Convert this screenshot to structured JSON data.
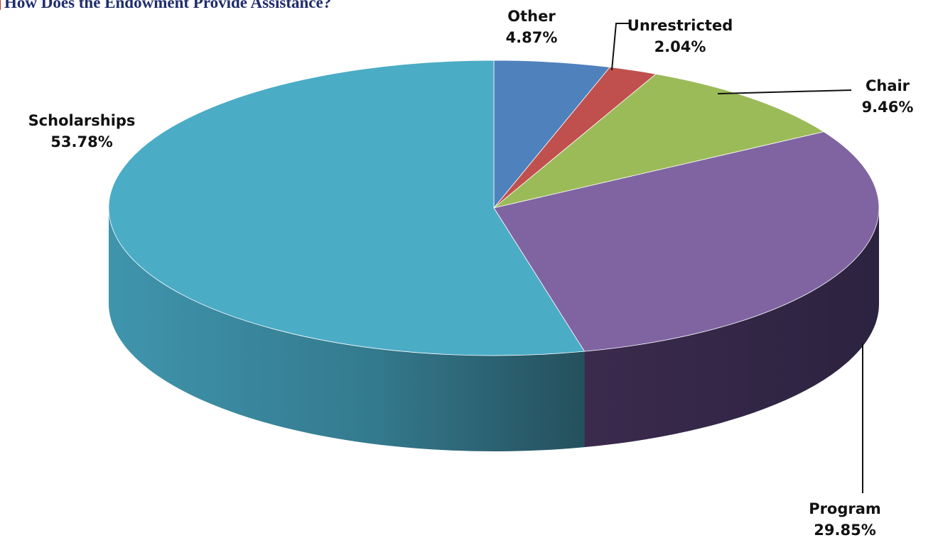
{
  "chart_data": {
    "type": "pie",
    "title": "How Does the Endowment Provide Assistance?",
    "three_d": true,
    "slices": [
      {
        "label": "Other",
        "value": 4.87,
        "value_label": "4.87%",
        "color": "#4f81bd"
      },
      {
        "label": "Unrestricted",
        "value": 2.04,
        "value_label": "2.04%",
        "color": "#c0504d"
      },
      {
        "label": "Chair",
        "value": 9.46,
        "value_label": "9.46%",
        "color": "#9bbb59"
      },
      {
        "label": "Program",
        "value": 29.85,
        "value_label": "29.85%",
        "color": "#8064a2"
      },
      {
        "label": "Scholarships",
        "value": 53.78,
        "value_label": "53.78%",
        "color": "#4bacc6"
      }
    ],
    "legend": "none"
  }
}
